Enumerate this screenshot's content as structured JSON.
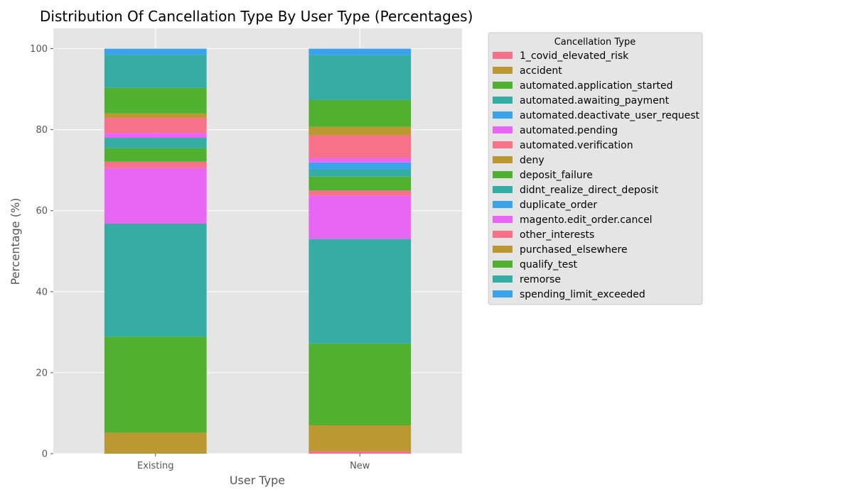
{
  "chart_data": {
    "type": "bar",
    "stacked": true,
    "title": "Distribution Of Cancellation Type By User Type (Percentages)",
    "xlabel": "User Type",
    "ylabel": "Percentage (%)",
    "ylim": [
      0,
      105
    ],
    "yticks": [
      0,
      20,
      40,
      60,
      80,
      100
    ],
    "grid": true,
    "legend_title": "Cancellation Type",
    "legend_position": "outside-right",
    "categories": [
      "Existing",
      "New"
    ],
    "series": [
      {
        "name": "1_covid_elevated_risk",
        "color": "#f77189",
        "values": [
          0.0,
          0.6
        ]
      },
      {
        "name": "accident",
        "color": "#bb9832",
        "values": [
          5.2,
          6.4
        ]
      },
      {
        "name": "automated.application_started",
        "color": "#50b131",
        "values": [
          23.7,
          20.2
        ]
      },
      {
        "name": "automated.awaiting_payment",
        "color": "#36ada4",
        "values": [
          27.9,
          25.8
        ]
      },
      {
        "name": "automated.deactivate_user_request",
        "color": "#3ba3ec",
        "values": [
          0.0,
          0.0
        ]
      },
      {
        "name": "automated.pending",
        "color": "#e866f4",
        "values": [
          13.7,
          10.7
        ]
      },
      {
        "name": "automated.verification",
        "color": "#f77189",
        "values": [
          1.6,
          1.3
        ]
      },
      {
        "name": "deny",
        "color": "#bb9832",
        "values": [
          0.0,
          0.0
        ]
      },
      {
        "name": "deposit_failure",
        "color": "#50b131",
        "values": [
          3.3,
          3.4
        ]
      },
      {
        "name": "didnt_realize_direct_deposit",
        "color": "#36ada4",
        "values": [
          2.6,
          1.9
        ]
      },
      {
        "name": "duplicate_order",
        "color": "#3ba3ec",
        "values": [
          0.0,
          1.6
        ]
      },
      {
        "name": "magento.edit_order.cancel",
        "color": "#e866f4",
        "values": [
          1.2,
          1.1
        ]
      },
      {
        "name": "other_interests",
        "color": "#f77189",
        "values": [
          3.7,
          5.6
        ]
      },
      {
        "name": "purchased_elsewhere",
        "color": "#bb9832",
        "values": [
          1.1,
          2.1
        ]
      },
      {
        "name": "qualify_test",
        "color": "#50b131",
        "values": [
          6.3,
          6.6
        ]
      },
      {
        "name": "remorse",
        "color": "#36ada4",
        "values": [
          8.2,
          11.1
        ]
      },
      {
        "name": "spending_limit_exceeded",
        "color": "#3ba3ec",
        "values": [
          1.5,
          1.6
        ]
      }
    ]
  }
}
